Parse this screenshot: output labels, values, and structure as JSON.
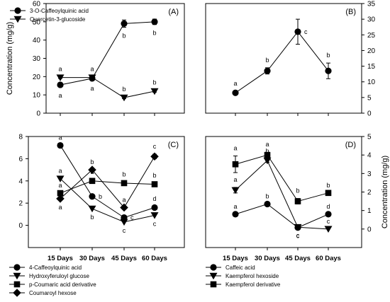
{
  "chart_data": [
    {
      "panel": "(A)",
      "type": "line",
      "categories": [
        "15 Days",
        "30 Days",
        "45 Days",
        "60 Days"
      ],
      "ylabel": "Concentration (mg/g)",
      "ylim": [
        0,
        60
      ],
      "yticks": [
        "0",
        "10",
        "20",
        "30",
        "40",
        "50",
        "60"
      ],
      "y_axis_side": "left",
      "show_x_labels": false,
      "legend_position": "top-left",
      "series": [
        {
          "name": "3-O-Caffeoylquinic acid",
          "marker": "circle",
          "values": [
            15.5,
            19,
            49,
            50
          ],
          "errors": [
            1.2,
            0.8,
            2,
            1.5
          ],
          "labels": [
            "a",
            "a",
            "b",
            "b"
          ],
          "label_pos": [
            "below",
            "below",
            "below",
            "below"
          ]
        },
        {
          "name": "Quercetin-3-glucoside",
          "marker": "triangle-down",
          "values": [
            19.5,
            19.5,
            8.5,
            12
          ],
          "errors": [
            0.5,
            0.5,
            0.5,
            0.5
          ],
          "labels": [
            "a",
            "a",
            "b",
            "b"
          ],
          "label_pos": [
            "above",
            "above",
            "above",
            "above"
          ]
        }
      ]
    },
    {
      "panel": "(B)",
      "type": "line",
      "categories": [
        "15 Days",
        "30 Days",
        "45 Days",
        "60 Days"
      ],
      "ylabel": "",
      "ylim": [
        0,
        35
      ],
      "yticks": [
        "0",
        "5",
        "10",
        "15",
        "20",
        "25",
        "30",
        "35"
      ],
      "y_axis_side": "right",
      "show_x_labels": false,
      "series": [
        {
          "name": "",
          "marker": "circle",
          "values": [
            6.5,
            13.5,
            26,
            13.5
          ],
          "errors": [
            0.5,
            1,
            4,
            2.5
          ],
          "labels": [
            "a",
            "b",
            "c",
            "b"
          ],
          "label_pos": [
            "above",
            "above",
            "right",
            "above"
          ]
        }
      ]
    },
    {
      "panel": "(C)",
      "type": "line",
      "categories": [
        "15 Days",
        "30 Days",
        "45 Days",
        "60 Days"
      ],
      "ylabel": "Concentration (mg/g)",
      "ylim": [
        -2,
        8
      ],
      "yticks": [
        "0",
        "2",
        "4",
        "6",
        "8"
      ],
      "y_axis_side": "left",
      "show_x_labels": true,
      "legend_position": "bottom-left",
      "series": [
        {
          "name": "4-Caffeoylquinic acid",
          "marker": "circle",
          "values": [
            7.2,
            2.6,
            0.7,
            1.6
          ],
          "errors": [
            0,
            0,
            0.2,
            0.1
          ],
          "labels": [
            "a",
            "b",
            "c",
            "d"
          ],
          "label_pos": [
            "above",
            "right",
            "right",
            "above"
          ]
        },
        {
          "name": "Hydroxyferuloyl glucose",
          "marker": "triangle-down",
          "values": [
            4.2,
            1.5,
            0.3,
            0.9
          ],
          "errors": [
            0,
            0,
            0,
            0
          ],
          "labels": [
            "a",
            "b",
            "c",
            "c"
          ],
          "label_pos": [
            "above",
            "below",
            "below",
            "below"
          ]
        },
        {
          "name": "p-Coumaric acid derivative",
          "marker": "square",
          "values": [
            2.9,
            4.0,
            3.8,
            3.7
          ],
          "errors": [
            0,
            0.1,
            0.1,
            0.1
          ],
          "labels": [
            "a",
            "a",
            "b",
            "b"
          ],
          "label_pos": [
            "above",
            "above",
            "above",
            "above"
          ]
        },
        {
          "name": "Coumaroyl hexose",
          "marker": "diamond",
          "values": [
            2.4,
            5.0,
            1.6,
            6.2
          ],
          "errors": [
            0,
            0,
            0,
            0.2
          ],
          "labels": [
            "a",
            "b",
            "a",
            "c"
          ],
          "label_pos": [
            "below",
            "above",
            "above",
            "above"
          ]
        }
      ]
    },
    {
      "panel": "(D)",
      "type": "line",
      "categories": [
        "15 Days",
        "30 Days",
        "45 Days",
        "60 Days"
      ],
      "ylabel": "Concentration (mg/g)",
      "ylim": [
        -1,
        5
      ],
      "yticks": [
        "0",
        "1",
        "2",
        "3",
        "4",
        "5"
      ],
      "y_axis_side": "right",
      "show_x_labels": true,
      "legend_position": "bottom-left",
      "series": [
        {
          "name": "Caffeic acid",
          "marker": "circle",
          "values": [
            0.8,
            1.35,
            0.08,
            0.8
          ],
          "errors": [
            0,
            0,
            0,
            0
          ],
          "labels": [
            "a",
            "b",
            "c",
            "d"
          ],
          "label_pos": [
            "above",
            "above",
            "below",
            "above"
          ]
        },
        {
          "name": "Kaempferol hexoside",
          "marker": "triangle-down",
          "values": [
            2.1,
            3.7,
            0.1,
            0.0
          ],
          "errors": [
            0.15,
            0.1,
            0,
            0
          ],
          "labels": [
            "a",
            "b",
            "c",
            "c"
          ],
          "label_pos": [
            "above",
            "above",
            "below",
            "above"
          ]
        },
        {
          "name": "Kaempferol derivative",
          "marker": "square",
          "values": [
            3.5,
            4.0,
            1.5,
            1.95
          ],
          "errors": [
            0.45,
            0.15,
            0.15,
            0
          ],
          "labels": [
            "a",
            "a",
            "b",
            "b"
          ],
          "label_pos": [
            "above",
            "above",
            "above",
            "above"
          ]
        }
      ]
    }
  ]
}
